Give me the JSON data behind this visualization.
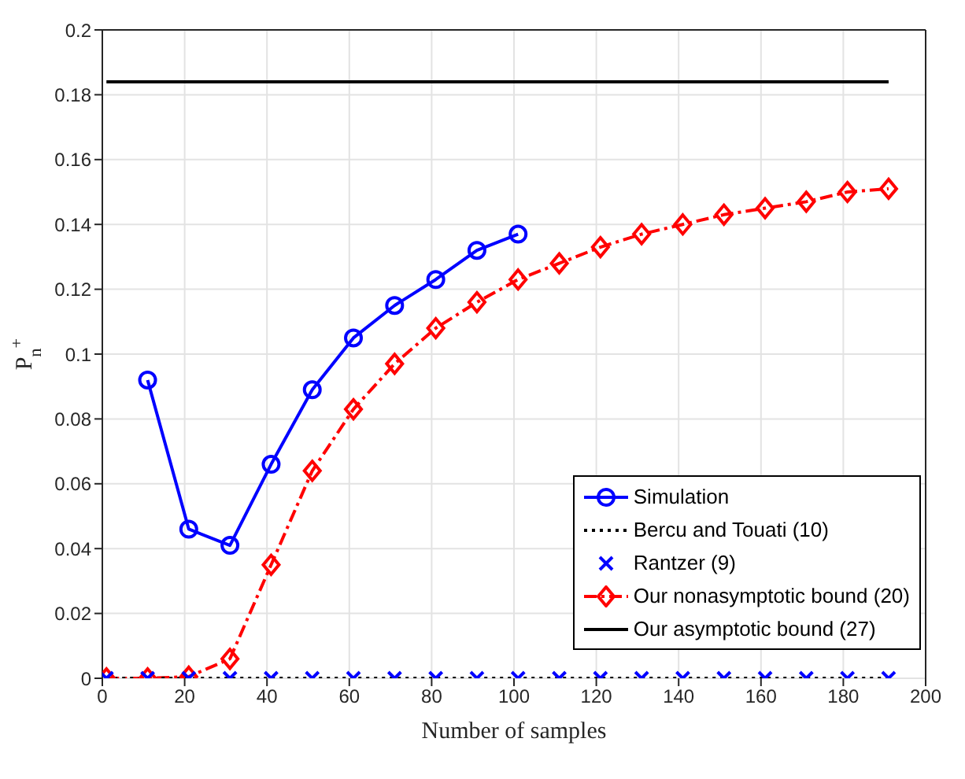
{
  "chart_data": {
    "type": "line",
    "xlabel": "Number of samples",
    "ylabel": "P$_{n}$$^{+}$",
    "xlim": [
      0,
      200
    ],
    "xticks": [
      0,
      20,
      40,
      60,
      80,
      100,
      120,
      140,
      160,
      180,
      200
    ],
    "ylim": [
      0,
      0.2
    ],
    "yticks": [
      0,
      0.02,
      0.04,
      0.06,
      0.08,
      0.1,
      0.12,
      0.14,
      0.16,
      0.18,
      0.2
    ],
    "grid": true,
    "legend": "bottom right",
    "series": [
      {
        "name": "Simulation",
        "type": "line",
        "color": "#0000ff",
        "marker": "circle",
        "line_style": "solid",
        "x": [
          11,
          21,
          31,
          41,
          51,
          61,
          71,
          81,
          91,
          101
        ],
        "values": [
          0.092,
          0.046,
          0.041,
          0.066,
          0.089,
          0.105,
          0.115,
          0.123,
          0.132,
          0.137
        ]
      },
      {
        "name": "Bercu and Touati (10)",
        "type": "line",
        "color": "#000000",
        "marker": "none",
        "line_style": "dotted",
        "x": [
          1,
          191
        ],
        "values": [
          0,
          0
        ]
      },
      {
        "name": "Rantzer (9)",
        "type": "scatter",
        "color": "#0000ff",
        "marker": "cross",
        "x": [
          1,
          11,
          21,
          31,
          41,
          51,
          61,
          71,
          81,
          91,
          101,
          111,
          121,
          131,
          141,
          151,
          161,
          171,
          181,
          191
        ],
        "values": [
          0,
          0,
          0,
          0,
          0,
          0,
          0,
          0,
          0,
          0,
          0,
          0,
          0,
          0,
          0,
          0,
          0,
          0,
          0,
          0
        ]
      },
      {
        "name": "Our nonasymptotic bound (20)",
        "type": "line",
        "color": "#ff0000",
        "marker": "diamond",
        "line_style": "dashed",
        "x": [
          1,
          11,
          21,
          31,
          41,
          51,
          61,
          71,
          81,
          91,
          101,
          111,
          121,
          131,
          141,
          151,
          161,
          171,
          181,
          191
        ],
        "values": [
          0,
          0,
          0.0005,
          0.006,
          0.035,
          0.064,
          0.083,
          0.097,
          0.108,
          0.116,
          0.123,
          0.128,
          0.133,
          0.137,
          0.14,
          0.143,
          0.145,
          0.147,
          0.15,
          0.151
        ]
      },
      {
        "name": "Our asymptotic bound (27)",
        "type": "line",
        "color": "#000000",
        "marker": "none",
        "line_style": "solid",
        "x": [
          1,
          191
        ],
        "values": [
          0.184,
          0.184
        ]
      }
    ]
  }
}
